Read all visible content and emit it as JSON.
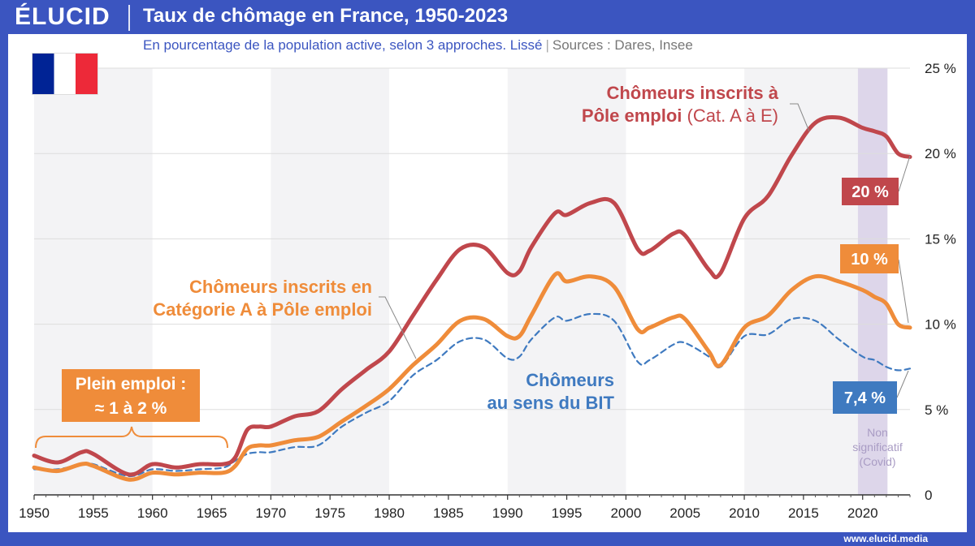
{
  "brand": {
    "logo_text": "ÉLUCID",
    "footer_url": "www.elucid.media",
    "blue": "#3b55c0"
  },
  "title": "Taux de chômage en France, 1950-2023",
  "subtitle": {
    "main": "En pourcentage de la population active, selon 3 approches. Lissé",
    "sources": "Sources : Dares, Insee"
  },
  "flag": {
    "colors": [
      "#002395",
      "#ffffff",
      "#ed2939"
    ]
  },
  "chart_data": {
    "type": "line",
    "xlim": [
      1950,
      2024
    ],
    "ylim": [
      0,
      25
    ],
    "x_ticks": [
      1950,
      1955,
      1960,
      1965,
      1970,
      1975,
      1980,
      1985,
      1990,
      1995,
      2000,
      2005,
      2010,
      2015,
      2020
    ],
    "y_ticks": [
      0,
      5,
      10,
      15,
      20,
      25
    ],
    "y_tick_labels": [
      "0",
      "5 %",
      "10 %",
      "15 %",
      "20 %",
      "25 %"
    ],
    "grid": true,
    "covid_band": {
      "from": 2019.6,
      "to": 2022.1,
      "label_lines": [
        "Non",
        "significatif",
        "(Covid)"
      ],
      "color": "#ddd6ea"
    },
    "series": [
      {
        "name": "Chômeurs inscrits à Pôle emploi (Cat. A à E)",
        "color": "#c0474c",
        "style": "solid",
        "end_value_label": "20 %",
        "points": [
          [
            1950,
            2.3
          ],
          [
            1952,
            1.9
          ],
          [
            1954,
            2.5
          ],
          [
            1955,
            2.4
          ],
          [
            1958,
            1.2
          ],
          [
            1960,
            1.8
          ],
          [
            1962,
            1.6
          ],
          [
            1964,
            1.8
          ],
          [
            1966,
            1.8
          ],
          [
            1967,
            2.2
          ],
          [
            1968,
            3.8
          ],
          [
            1969,
            4.0
          ],
          [
            1970,
            4.0
          ],
          [
            1972,
            4.6
          ],
          [
            1974,
            4.9
          ],
          [
            1976,
            6.2
          ],
          [
            1978,
            7.3
          ],
          [
            1980,
            8.4
          ],
          [
            1982,
            10.5
          ],
          [
            1984,
            12.6
          ],
          [
            1986,
            14.4
          ],
          [
            1988,
            14.5
          ],
          [
            1990,
            13.0
          ],
          [
            1991,
            13.1
          ],
          [
            1992,
            14.5
          ],
          [
            1994,
            16.5
          ],
          [
            1995,
            16.4
          ],
          [
            1997,
            17.1
          ],
          [
            1999,
            17.1
          ],
          [
            2001,
            14.4
          ],
          [
            2002,
            14.3
          ],
          [
            2004,
            15.3
          ],
          [
            2005,
            15.2
          ],
          [
            2007,
            13.2
          ],
          [
            2008,
            13.0
          ],
          [
            2010,
            16.2
          ],
          [
            2012,
            17.5
          ],
          [
            2014,
            19.9
          ],
          [
            2016,
            21.8
          ],
          [
            2018,
            22.1
          ],
          [
            2020,
            21.5
          ],
          [
            2021,
            21.3
          ],
          [
            2022,
            21.0
          ],
          [
            2023,
            20.0
          ],
          [
            2024,
            19.8
          ]
        ]
      },
      {
        "name": "Chômeurs inscrits en Catégorie A à Pôle emploi",
        "color": "#ef8c3a",
        "style": "solid",
        "end_value_label": "10 %",
        "points": [
          [
            1950,
            1.6
          ],
          [
            1952,
            1.4
          ],
          [
            1954,
            1.8
          ],
          [
            1955,
            1.7
          ],
          [
            1958,
            0.9
          ],
          [
            1960,
            1.3
          ],
          [
            1962,
            1.2
          ],
          [
            1964,
            1.3
          ],
          [
            1966,
            1.3
          ],
          [
            1967,
            1.7
          ],
          [
            1968,
            2.7
          ],
          [
            1969,
            2.9
          ],
          [
            1970,
            2.9
          ],
          [
            1972,
            3.2
          ],
          [
            1974,
            3.4
          ],
          [
            1976,
            4.3
          ],
          [
            1978,
            5.2
          ],
          [
            1980,
            6.2
          ],
          [
            1982,
            7.6
          ],
          [
            1984,
            8.8
          ],
          [
            1986,
            10.2
          ],
          [
            1988,
            10.3
          ],
          [
            1990,
            9.3
          ],
          [
            1991,
            9.3
          ],
          [
            1992,
            10.5
          ],
          [
            1994,
            12.9
          ],
          [
            1995,
            12.5
          ],
          [
            1997,
            12.8
          ],
          [
            1999,
            12.2
          ],
          [
            2001,
            9.7
          ],
          [
            2002,
            9.8
          ],
          [
            2004,
            10.4
          ],
          [
            2005,
            10.3
          ],
          [
            2007,
            8.4
          ],
          [
            2008,
            7.6
          ],
          [
            2010,
            9.8
          ],
          [
            2012,
            10.5
          ],
          [
            2014,
            12.0
          ],
          [
            2016,
            12.8
          ],
          [
            2018,
            12.5
          ],
          [
            2020,
            12.0
          ],
          [
            2021,
            11.6
          ],
          [
            2022,
            11.2
          ],
          [
            2023,
            10.0
          ],
          [
            2024,
            9.8
          ]
        ]
      },
      {
        "name": "Chômeurs au sens du BIT",
        "color": "#3f7ac0",
        "style": "dashed",
        "end_value_label": "7,4 %",
        "points": [
          [
            1950,
            1.5
          ],
          [
            1952,
            1.5
          ],
          [
            1954,
            1.8
          ],
          [
            1955,
            1.8
          ],
          [
            1958,
            1.1
          ],
          [
            1960,
            1.5
          ],
          [
            1962,
            1.4
          ],
          [
            1964,
            1.5
          ],
          [
            1966,
            1.6
          ],
          [
            1967,
            2.0
          ],
          [
            1968,
            2.4
          ],
          [
            1969,
            2.5
          ],
          [
            1970,
            2.5
          ],
          [
            1972,
            2.8
          ],
          [
            1974,
            2.9
          ],
          [
            1976,
            4.0
          ],
          [
            1978,
            4.8
          ],
          [
            1980,
            5.5
          ],
          [
            1982,
            7.0
          ],
          [
            1984,
            7.9
          ],
          [
            1986,
            9.0
          ],
          [
            1988,
            9.1
          ],
          [
            1990,
            8.0
          ],
          [
            1991,
            8.1
          ],
          [
            1992,
            9.1
          ],
          [
            1994,
            10.4
          ],
          [
            1995,
            10.2
          ],
          [
            1997,
            10.6
          ],
          [
            1999,
            10.2
          ],
          [
            2001,
            7.8
          ],
          [
            2002,
            7.9
          ],
          [
            2004,
            8.8
          ],
          [
            2005,
            8.9
          ],
          [
            2007,
            8.1
          ],
          [
            2008,
            7.5
          ],
          [
            2010,
            9.3
          ],
          [
            2012,
            9.4
          ],
          [
            2014,
            10.3
          ],
          [
            2016,
            10.2
          ],
          [
            2018,
            9.1
          ],
          [
            2020,
            8.1
          ],
          [
            2021,
            7.9
          ],
          [
            2022,
            7.5
          ],
          [
            2023,
            7.3
          ],
          [
            2024,
            7.4
          ]
        ]
      }
    ],
    "annotations": {
      "red_line1": "Chômeurs inscrits à",
      "red_line2_bold": "Pôle emploi",
      "red_line2_rest": " (Cat. A à E)",
      "orange_line1": "Chômeurs inscrits en",
      "orange_line2": "Catégorie A à Pôle emploi",
      "blue_line1": "Chômeurs",
      "blue_line2": "au sens du BIT",
      "plein_line1": "Plein emploi :",
      "plein_line2": "≈ 1 à 2 %"
    }
  }
}
